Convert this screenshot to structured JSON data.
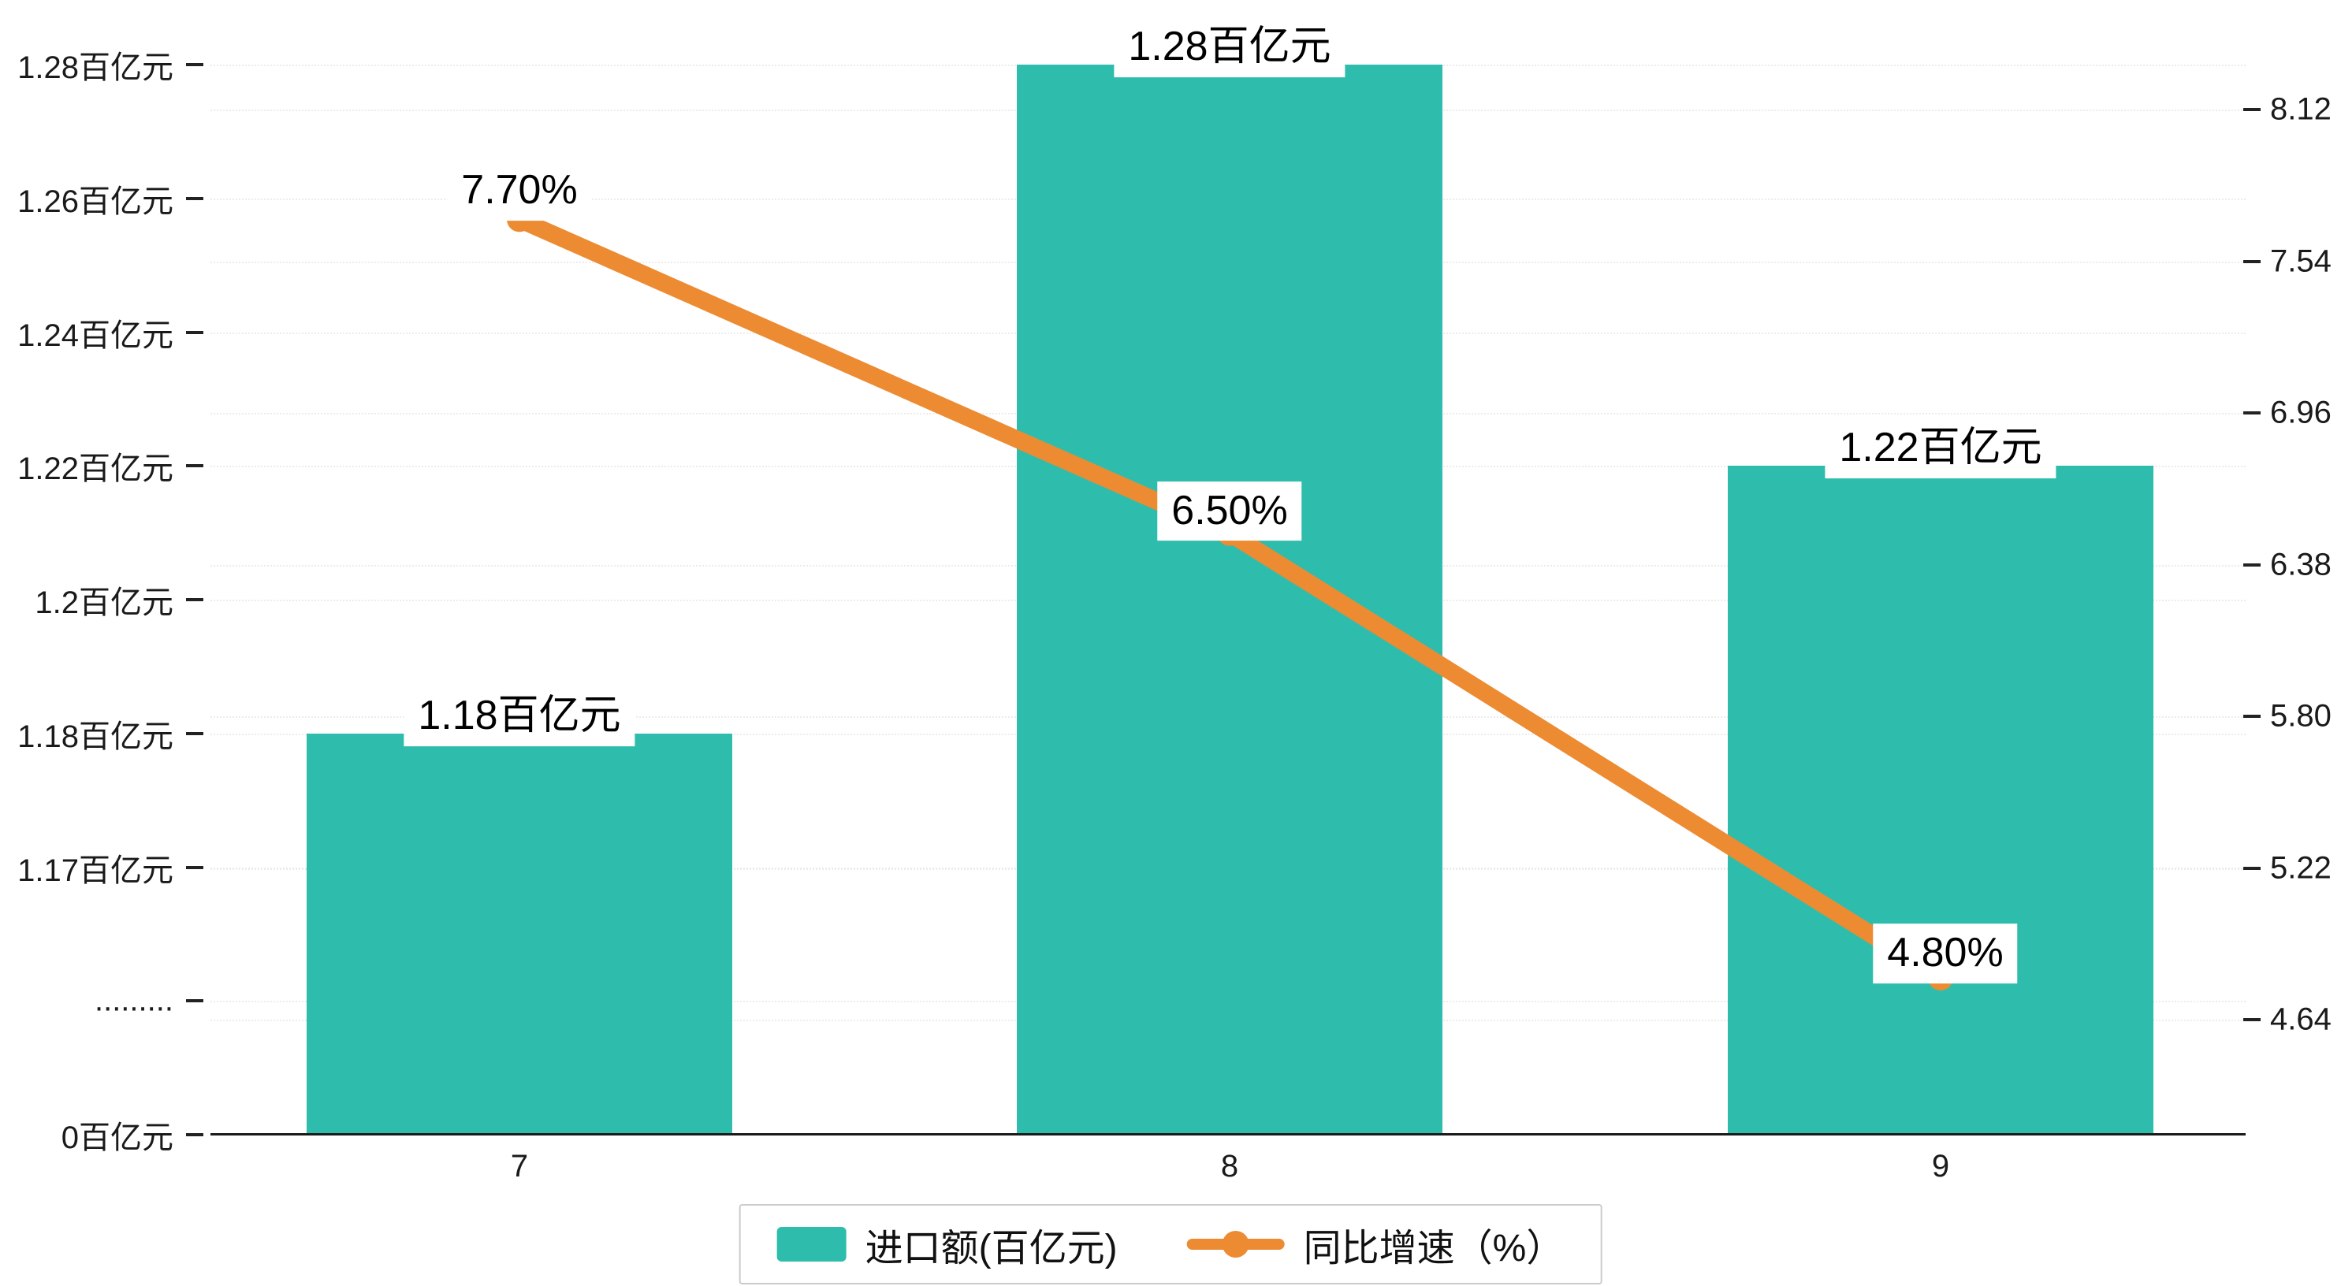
{
  "chart_data": {
    "type": "bar",
    "title": "",
    "categories": [
      "7",
      "8",
      "9"
    ],
    "series": [
      {
        "name": "进口额(百亿元)",
        "type": "bar",
        "color": "#2ebdac",
        "values": [
          1.18,
          1.28,
          1.22
        ],
        "labels": [
          "1.18百亿元",
          "1.28百亿元",
          "1.22百亿元"
        ]
      },
      {
        "name": "同比增速（%）",
        "type": "line",
        "color": "#ed8b33",
        "values": [
          7.7,
          6.5,
          4.8
        ],
        "labels": [
          "7.70%",
          "6.50%",
          "4.80%"
        ]
      }
    ],
    "left_axis": {
      "tick_labels_top_to_bottom": [
        "1.28百亿元",
        "1.26百亿元",
        "1.24百亿元",
        "1.22百亿元",
        "1.2百亿元",
        "1.18百亿元",
        "1.17百亿元",
        ".........",
        "0百亿元"
      ],
      "tick_values": [
        1.28,
        1.26,
        1.24,
        1.22,
        1.2,
        1.18,
        1.17,
        null,
        0
      ],
      "note": "broken axis between 0 and 1.17"
    },
    "right_axis": {
      "ticks": [
        "8.12",
        "7.54",
        "6.96",
        "6.38",
        "5.80",
        "5.22",
        "4.64"
      ],
      "min": 4.64,
      "max": 8.12
    },
    "legend": {
      "position": "bottom"
    },
    "grid": "dashed-horizontal"
  }
}
